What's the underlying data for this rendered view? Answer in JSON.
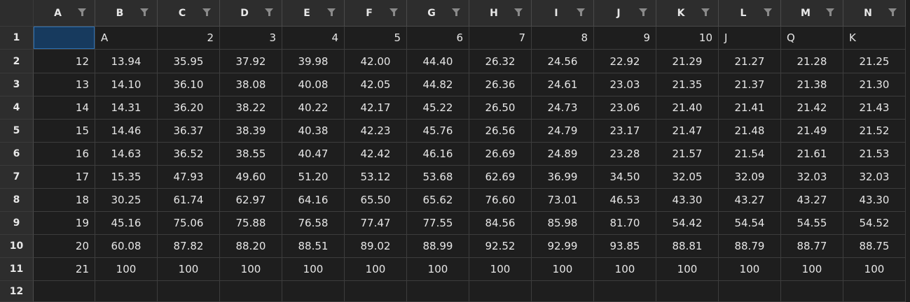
{
  "columns": [
    "A",
    "B",
    "C",
    "D",
    "E",
    "F",
    "G",
    "H",
    "I",
    "J",
    "K",
    "L",
    "M",
    "N"
  ],
  "row_numbers": [
    "1",
    "2",
    "3",
    "4",
    "5",
    "6",
    "7",
    "8",
    "9",
    "10",
    "11",
    "12"
  ],
  "selected_cell": "A1",
  "cells": [
    [
      "",
      "A",
      "2",
      "3",
      "4",
      "5",
      "6",
      "7",
      "8",
      "9",
      "10",
      "J",
      "Q",
      "K"
    ],
    [
      "12",
      "13.94",
      "35.95",
      "37.92",
      "39.98",
      "42.00",
      "44.40",
      "26.32",
      "24.56",
      "22.92",
      "21.29",
      "21.27",
      "21.28",
      "21.25"
    ],
    [
      "13",
      "14.10",
      "36.10",
      "38.08",
      "40.08",
      "42.05",
      "44.82",
      "26.36",
      "24.61",
      "23.03",
      "21.35",
      "21.37",
      "21.38",
      "21.30"
    ],
    [
      "14",
      "14.31",
      "36.20",
      "38.22",
      "40.22",
      "42.17",
      "45.22",
      "26.50",
      "24.73",
      "23.06",
      "21.40",
      "21.41",
      "21.42",
      "21.43"
    ],
    [
      "15",
      "14.46",
      "36.37",
      "38.39",
      "40.38",
      "42.23",
      "45.76",
      "26.56",
      "24.79",
      "23.17",
      "21.47",
      "21.48",
      "21.49",
      "21.52"
    ],
    [
      "16",
      "14.63",
      "36.52",
      "38.55",
      "40.47",
      "42.42",
      "46.16",
      "26.69",
      "24.89",
      "23.28",
      "21.57",
      "21.54",
      "21.61",
      "21.53"
    ],
    [
      "17",
      "15.35",
      "47.93",
      "49.60",
      "51.20",
      "53.12",
      "53.68",
      "62.69",
      "36.99",
      "34.50",
      "32.05",
      "32.09",
      "32.03",
      "32.03"
    ],
    [
      "18",
      "30.25",
      "61.74",
      "62.97",
      "64.16",
      "65.50",
      "65.62",
      "76.60",
      "73.01",
      "46.53",
      "43.30",
      "43.27",
      "43.27",
      "43.30"
    ],
    [
      "19",
      "45.16",
      "75.06",
      "75.88",
      "76.58",
      "77.47",
      "77.55",
      "84.56",
      "85.98",
      "81.70",
      "54.42",
      "54.54",
      "54.55",
      "54.52"
    ],
    [
      "20",
      "60.08",
      "87.82",
      "88.20",
      "88.51",
      "89.02",
      "88.99",
      "92.52",
      "92.99",
      "93.85",
      "88.81",
      "88.79",
      "88.77",
      "88.75"
    ],
    [
      "21",
      "100",
      "100",
      "100",
      "100",
      "100",
      "100",
      "100",
      "100",
      "100",
      "100",
      "100",
      "100",
      "100"
    ],
    [
      "",
      "",
      "",
      "",
      "",
      "",
      "",
      "",
      "",
      "",
      "",
      "",
      "",
      ""
    ]
  ]
}
